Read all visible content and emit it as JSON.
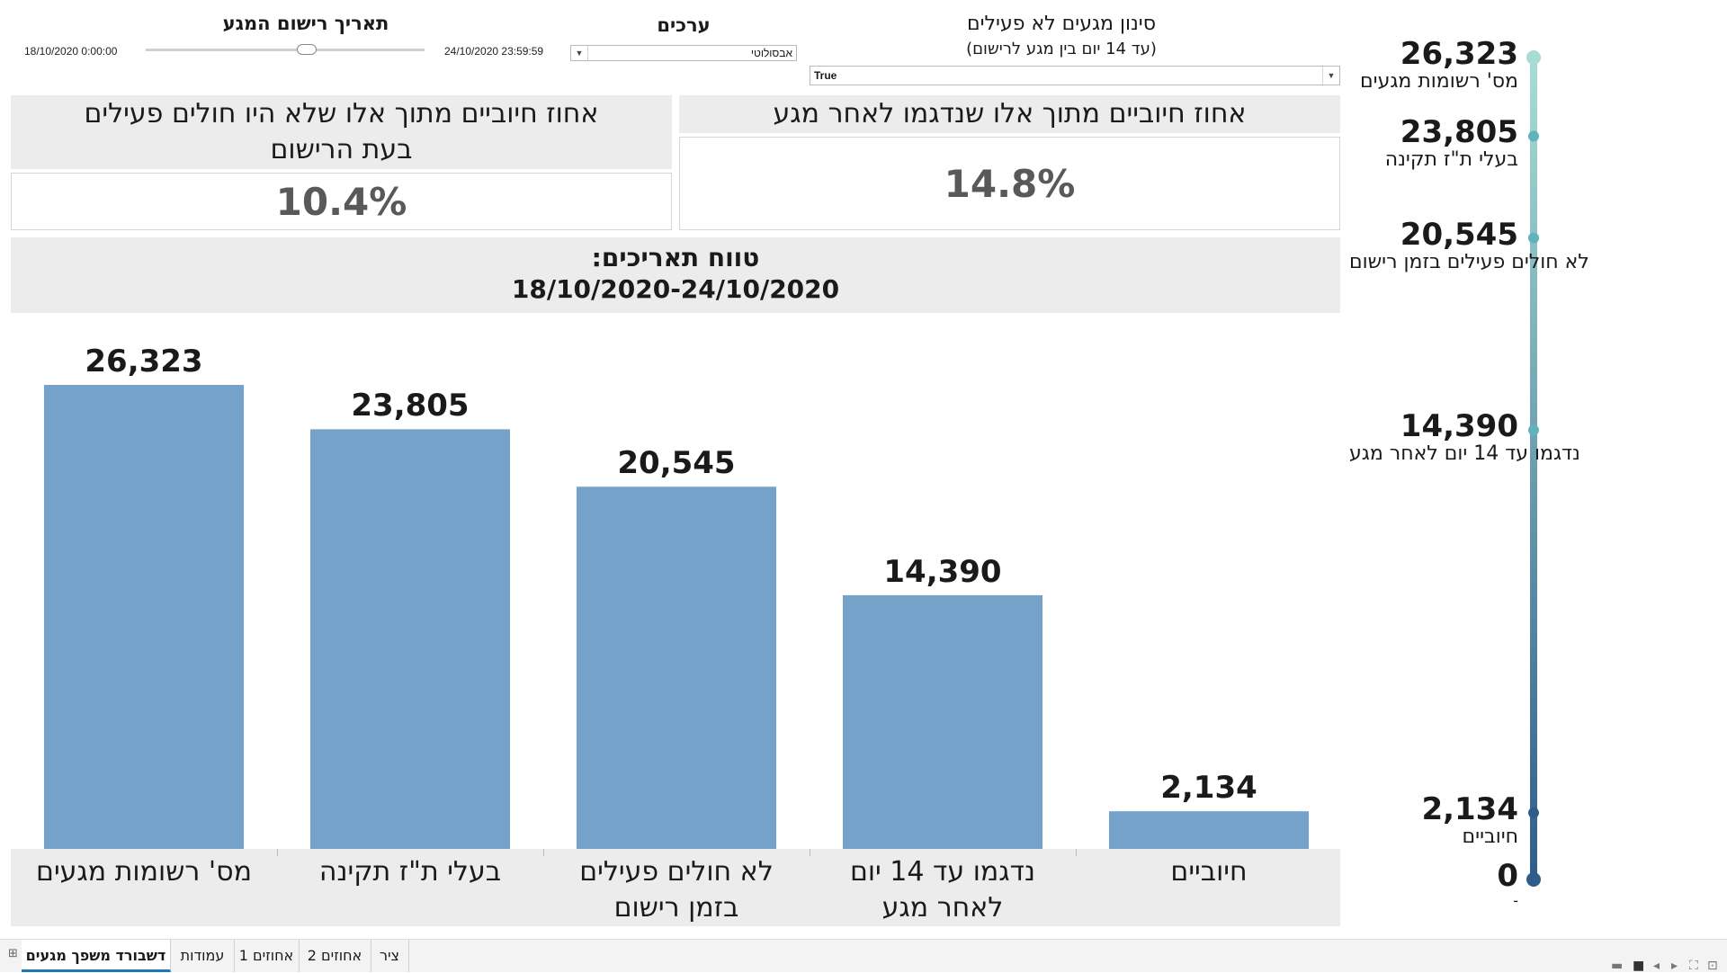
{
  "filters": {
    "date_title": "תאריך רישום המגע",
    "date_start": "18/10/2020 0:00:00",
    "date_end": "24/10/2020 23:59:59",
    "values_title": "ערכים",
    "values_selected": "אבסולוטי",
    "nonactive_title": "סינון מגעים לא פעילים",
    "nonactive_subtitle": "(עד 14 יום בין מגע לרישום)",
    "nonactive_selected": "True"
  },
  "kpis": {
    "left_title": "אחוז חיוביים מתוך אלו שלא היו חולים פעילים בעת הרישום",
    "left_value": "10.4%",
    "right_title": "אחוז חיוביים מתוך אלו שנדגמו לאחר מגע",
    "right_value": "14.8%"
  },
  "range": {
    "title": "טווח תאריכים:",
    "dates": "18/10/2020-24/10/2020"
  },
  "chart_data": {
    "type": "bar",
    "categories": [
      "מס' רשומות מגעים",
      "בעלי ת\"ז תקינה",
      "לא חולים פעילים בזמן רישום",
      "נדגמו עד 14 יום לאחר מגע",
      "חיוביים"
    ],
    "values": [
      26323,
      23805,
      20545,
      14390,
      2134
    ],
    "value_labels": [
      "26,323",
      "23,805",
      "20,545",
      "14,390",
      "2,134"
    ],
    "bar_color": "#74a2c8",
    "ylim": [
      0,
      26323
    ]
  },
  "funnel": {
    "points": [
      {
        "value": "26,323",
        "label": "מס' רשומות מגעים",
        "v": 26323
      },
      {
        "value": "23,805",
        "label": "בעלי ת\"ז תקינה",
        "v": 23805
      },
      {
        "value": "20,545",
        "label": "לא חולים פעילים בזמן רישום",
        "v": 20545
      },
      {
        "value": "14,390",
        "label": "נדגמו עד 14 יום לאחר מגע",
        "v": 14390
      },
      {
        "value": "2,134",
        "label": "חיוביים",
        "v": 2134
      },
      {
        "value": "0",
        "label": "-",
        "v": 0
      }
    ],
    "color_top": "#a8ddd4",
    "color_bottom": "#2e5d8a"
  },
  "tabs": [
    {
      "label": "דשבורד משפך מגעים",
      "active": true
    },
    {
      "label": "עמודות",
      "active": false
    },
    {
      "label": "אחוזים 1",
      "active": false
    },
    {
      "label": "אחוזים 2",
      "active": false
    },
    {
      "label": "ציר",
      "active": false
    }
  ]
}
